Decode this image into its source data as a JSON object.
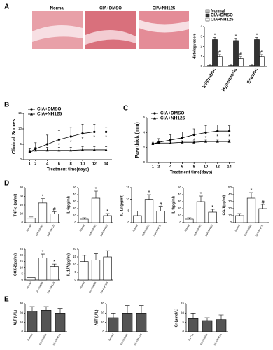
{
  "chart_data": [
    {
      "type": "grouped_bar",
      "panel": "A",
      "ylabel": "Histology score",
      "image_labels": [
        "Normal",
        "CIA+DMSO",
        "CIA+NH125"
      ],
      "categories": [
        "Infiltration",
        "Hyperplasia",
        "Erosion"
      ],
      "ylim": [
        0,
        4
      ],
      "yticks": [
        0,
        1,
        2,
        3,
        4
      ],
      "legend": "top",
      "series": [
        {
          "name": "Normal",
          "color": "#bbbbbb",
          "values": [
            0.1,
            0.1,
            0.1
          ],
          "errors": [
            0.05,
            0.05,
            0.05
          ]
        },
        {
          "name": "CIA+DMSO",
          "color": "#333333",
          "values": [
            2.7,
            2.6,
            2.7
          ],
          "errors": [
            0.2,
            0.2,
            0.2
          ],
          "marks": [
            "*",
            "*",
            "*"
          ]
        },
        {
          "name": "CIA+NH125",
          "color": "#ffffff",
          "values": [
            1.0,
            0.8,
            1.0
          ],
          "errors": [
            0.2,
            0.2,
            0.2
          ],
          "marks": [
            "#",
            "#",
            "#"
          ]
        }
      ]
    },
    {
      "type": "line",
      "panel": "B",
      "ylabel": "Clinical Scores",
      "xlabel": "Treatment time(days)",
      "x": [
        1,
        2,
        4,
        6,
        8,
        10,
        12,
        14
      ],
      "xlim": [
        0,
        15
      ],
      "xticks": [
        1,
        2,
        4,
        6,
        8,
        10,
        12,
        14
      ],
      "ylim": [
        0,
        15
      ],
      "yticks": [
        0,
        5,
        10,
        15
      ],
      "series": [
        {
          "name": "CIA+DMSO",
          "color": "#000000",
          "marker": "circle",
          "values": [
            2.5,
            3.5,
            5,
            6.5,
            7.5,
            8.5,
            9,
            9
          ],
          "errors": [
            1,
            2,
            3,
            3,
            3,
            3,
            2.5,
            1.5
          ]
        },
        {
          "name": "CIA+NH125",
          "color": "#000000",
          "marker": "triangle",
          "values": [
            2.5,
            3,
            3,
            3,
            3,
            3.2,
            3.2,
            3.2
          ],
          "errors": [
            0.5,
            1,
            1,
            1,
            1,
            1,
            1,
            1
          ],
          "marks": [
            null,
            null,
            null,
            "*",
            "*",
            "*",
            "*",
            "*"
          ]
        }
      ]
    },
    {
      "type": "line",
      "panel": "C",
      "ylabel": "Paw thick (mm)",
      "xlabel": "Treatment time(days)",
      "x": [
        1,
        2,
        4,
        6,
        8,
        10,
        12,
        14
      ],
      "xlim": [
        0,
        15
      ],
      "xticks": [
        1,
        2,
        4,
        6,
        8,
        10,
        12,
        14
      ],
      "ylim": [
        0,
        6
      ],
      "yticks": [
        0,
        2,
        4,
        6
      ],
      "series": [
        {
          "name": "CIA+DMSO",
          "color": "#000000",
          "marker": "circle",
          "values": [
            2.5,
            2.7,
            3.0,
            3.3,
            3.7,
            4.0,
            4.2,
            4.2
          ],
          "errors": [
            0.2,
            0.5,
            0.7,
            0.8,
            0.8,
            0.9,
            0.8,
            0.7
          ]
        },
        {
          "name": "CIA+NH125",
          "color": "#000000",
          "marker": "triangle",
          "values": [
            2.5,
            2.6,
            2.6,
            2.7,
            2.7,
            2.8,
            2.8,
            2.8
          ],
          "errors": [
            0.1,
            0.2,
            0.2,
            0.2,
            0.2,
            0.2,
            0.2,
            0.2
          ],
          "marks": [
            null,
            null,
            null,
            null,
            "*",
            "*",
            "*",
            "*"
          ]
        }
      ]
    },
    {
      "type": "bar",
      "panel": "D",
      "ylabel": "TNF-α (pg/ml)",
      "categories": [
        "Normal",
        "CIA+DMSO",
        "CIA+NH125"
      ],
      "color": "#ffffff",
      "values": [
        10,
        45,
        20
      ],
      "errors": [
        3,
        10,
        5
      ],
      "marks": [
        null,
        "*",
        "#"
      ],
      "ylim": [
        0,
        80
      ],
      "yticks": [
        0,
        20,
        40,
        60,
        80
      ]
    },
    {
      "type": "bar",
      "ylabel": "IL-6(pg/ml)",
      "categories": [
        "Normal",
        "CIA+DMSO",
        "CIA+NH125"
      ],
      "color": "#ffffff",
      "values": [
        5,
        35,
        10
      ],
      "errors": [
        2,
        10,
        3
      ],
      "marks": [
        null,
        "*",
        "*"
      ],
      "ylim": [
        0,
        50
      ],
      "yticks": [
        0,
        10,
        20,
        30,
        40,
        50
      ]
    },
    {
      "type": "bar",
      "ylabel": "IL-1β (pg/ml)",
      "categories": [
        "Normal",
        "CIA+DMSO",
        "CIA+NH125"
      ],
      "color": "#ffffff",
      "values": [
        3,
        10,
        5
      ],
      "errors": [
        2,
        2,
        2
      ],
      "marks": [
        null,
        "*",
        "#"
      ],
      "ylim": [
        0,
        15
      ],
      "yticks": [
        0,
        5,
        10,
        15
      ]
    },
    {
      "type": "bar",
      "ylabel": "IL-8(pg/ml)",
      "categories": [
        "Normal",
        "CIA+DMSO",
        "CIA+NH125"
      ],
      "color": "#ffffff",
      "values": [
        5,
        30,
        15
      ],
      "errors": [
        2,
        8,
        4
      ],
      "marks": [
        null,
        "*",
        "*"
      ],
      "ylim": [
        0,
        50
      ],
      "yticks": [
        0,
        10,
        20,
        30,
        40,
        50
      ]
    },
    {
      "type": "bar",
      "ylabel": "CG-1(pg/ml)",
      "categories": [
        "Normal",
        "CIA+DMSO",
        "CIA+NH125"
      ],
      "color": "#ffffff",
      "values": [
        10,
        35,
        20
      ],
      "errors": [
        3,
        8,
        6
      ],
      "marks": [
        null,
        "*",
        "#"
      ],
      "ylim": [
        0,
        50
      ],
      "yticks": [
        0,
        10,
        20,
        30,
        40,
        50
      ]
    },
    {
      "type": "bar",
      "ylabel": "COX-2(pg/ml)",
      "categories": [
        "Normal",
        "CIA+DMSO",
        "CIA+NH125"
      ],
      "color": "#ffffff",
      "values": [
        2,
        18,
        11
      ],
      "errors": [
        1,
        3,
        2
      ],
      "marks": [
        null,
        "*",
        "*"
      ],
      "ylim": [
        0,
        25
      ],
      "yticks": [
        0,
        5,
        10,
        15,
        20,
        25
      ]
    },
    {
      "type": "bar",
      "ylabel": "IL-17A(pg/ml)",
      "categories": [
        "Normal",
        "CIA+DMSO",
        "CIA+NH125"
      ],
      "color": "#ffffff",
      "values": [
        12,
        13,
        15
      ],
      "errors": [
        4,
        4,
        4
      ],
      "ylim": [
        0,
        20
      ],
      "yticks": [
        0,
        5,
        10,
        15,
        20
      ]
    },
    {
      "type": "bar",
      "panel": "E",
      "ylabel": "ALT (U/L)",
      "categories": [
        "Normal",
        "CIA+DMSO",
        "CIA+NH125"
      ],
      "color": "#555555",
      "values": [
        22,
        23,
        20
      ],
      "errors": [
        5,
        4,
        5
      ],
      "ylim": [
        0,
        30
      ],
      "yticks": [
        0,
        10,
        20,
        30
      ]
    },
    {
      "type": "bar",
      "ylabel": "AST (U/L)",
      "categories": [
        "Normal",
        "CIA+DMSO",
        "CIA+NH125"
      ],
      "color": "#555555",
      "values": [
        15,
        20,
        20
      ],
      "errors": [
        5,
        8,
        8
      ],
      "ylim": [
        0,
        30
      ],
      "yticks": [
        0,
        10,
        20,
        30
      ]
    },
    {
      "type": "bar",
      "ylabel": "Cr (μmol/L)",
      "categories": [
        "No CIA",
        "CIA+DMSO",
        "CIA+NH125"
      ],
      "color": "#555555",
      "values": [
        7,
        6,
        6.5
      ],
      "errors": [
        3,
        1.5,
        2.5
      ],
      "ylim": [
        0,
        15
      ],
      "yticks": [
        0,
        5,
        10,
        15
      ]
    }
  ]
}
